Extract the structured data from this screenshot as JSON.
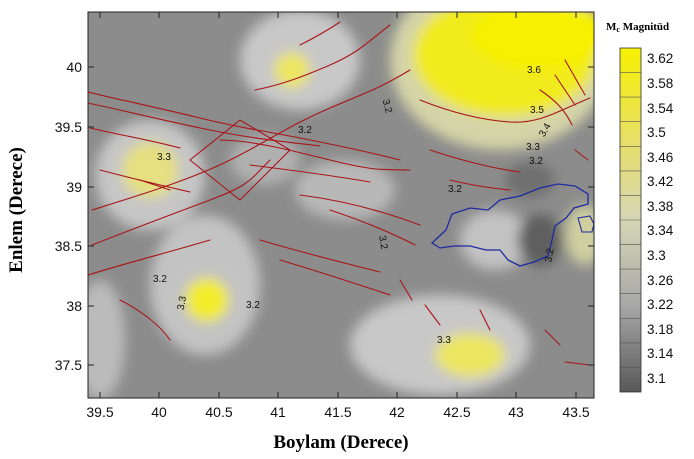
{
  "title": "",
  "x_axis": {
    "label": "Boylam (Derece)",
    "ticks": [
      "39.5",
      "40",
      "40.5",
      "41",
      "41.5",
      "42",
      "42.5",
      "43",
      "43.5"
    ]
  },
  "y_axis": {
    "label": "Enlem (Derece)",
    "ticks": [
      "40",
      "39.5",
      "39",
      "38.5",
      "38",
      "37.5"
    ]
  },
  "legend": {
    "title": "Mc Magnitüd",
    "title_main": "M",
    "title_sub": "c",
    "title_rest": " Magnitüd",
    "levels": [
      "3.62",
      "3.58",
      "3.54",
      "3.5",
      "3.46",
      "3.42",
      "3.38",
      "3.34",
      "3.3",
      "3.26",
      "3.22",
      "3.18",
      "3.14",
      "3.1"
    ]
  },
  "contour_labels": [
    "3.6",
    "3.5",
    "3.4",
    "3.3",
    "3.2",
    "3.2",
    "3.2",
    "3.3",
    "3.2",
    "3.2",
    "3.2",
    "3.3",
    "3.2",
    "3.3",
    "3.2"
  ],
  "colors": {
    "background": "#8c8c8c",
    "high": "#f7f000",
    "fault_lines": "#a8151a",
    "lake_outline": "#1f2aa0"
  },
  "chart_data": {
    "type": "heatmap",
    "variable": "Mc Magnitüd",
    "xlabel": "Boylam (Derece)",
    "ylabel": "Enlem (Derece)",
    "xlim": [
      39.4,
      43.65
    ],
    "ylim": [
      37.2,
      40.45
    ],
    "color_scale": {
      "min": 3.1,
      "max": 3.62,
      "step": 0.04,
      "low_color": "#555555",
      "high_color": "#f7f000"
    },
    "notable_regions": [
      {
        "lon": 43.1,
        "lat": 40.2,
        "mc": 3.62
      },
      {
        "lon": 42.6,
        "lat": 39.85,
        "mc": 3.6
      },
      {
        "lon": 43.3,
        "lat": 39.6,
        "mc": 3.5
      },
      {
        "lon": 40.4,
        "lat": 37.98,
        "mc": 3.55
      },
      {
        "lon": 41.1,
        "lat": 40.0,
        "mc": 3.4
      },
      {
        "lon": 40.0,
        "lat": 39.1,
        "mc": 3.36
      },
      {
        "lon": 42.65,
        "lat": 37.6,
        "mc": 3.34
      },
      {
        "lon": 43.2,
        "lat": 38.45,
        "mc": 3.12
      },
      {
        "lon": 43.15,
        "lat": 38.95,
        "mc": 3.16
      }
    ],
    "contour_labels": [
      {
        "text": "3.6",
        "lon": 42.9,
        "lat": 39.97
      },
      {
        "text": "3.5",
        "lon": 43.15,
        "lat": 39.57
      },
      {
        "text": "3.4",
        "lon": 43.27,
        "lat": 39.4
      },
      {
        "text": "3.3",
        "lon": 43.12,
        "lat": 39.28
      },
      {
        "text": "3.2",
        "lon": 43.12,
        "lat": 39.15
      },
      {
        "text": "3.2",
        "lon": 41.86,
        "lat": 39.72
      },
      {
        "text": "3.2",
        "lon": 41.33,
        "lat": 39.5
      },
      {
        "text": "3.3",
        "lon": 40.01,
        "lat": 39.26
      },
      {
        "text": "3.2",
        "lon": 42.48,
        "lat": 38.96
      },
      {
        "text": "3.2",
        "lon": 41.85,
        "lat": 38.58
      },
      {
        "text": "3.2",
        "lon": 43.26,
        "lat": 38.4
      },
      {
        "text": "3.3",
        "lon": 40.25,
        "lat": 37.98
      },
      {
        "text": "3.2",
        "lon": 40.03,
        "lat": 38.22
      },
      {
        "text": "3.3",
        "lon": 42.48,
        "lat": 37.68
      },
      {
        "text": "3.2",
        "lon": 40.82,
        "lat": 37.98
      }
    ]
  }
}
